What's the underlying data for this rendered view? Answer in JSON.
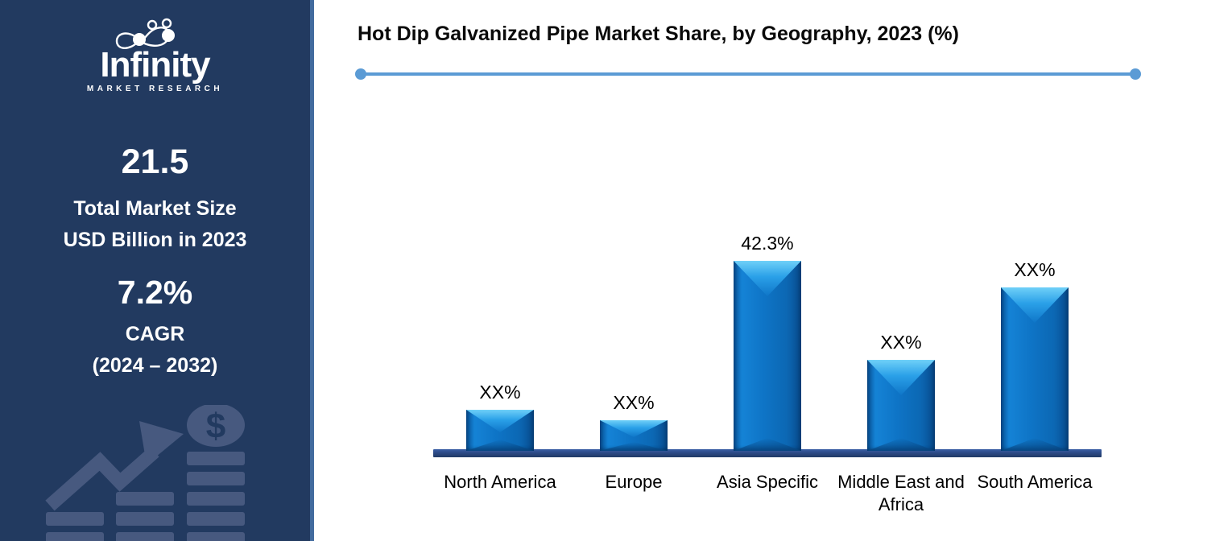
{
  "sidebar": {
    "brand": "Infinity",
    "tagline": "MARKET RESEARCH",
    "market_size": {
      "value": "21.5",
      "line1": "Total Market Size",
      "line2": "USD Billion in 2023"
    },
    "cagr": {
      "value": "7.2%",
      "line1": "CAGR",
      "line2": "(2024 – 2032)"
    }
  },
  "header": {
    "title": "Hot Dip Galvanized Pipe Market Share, by Geography, 2023 (%)"
  },
  "icons": {
    "logo_mark": "infinity-loop-with-figures",
    "sidebar_footer": "growth-arrow-with-dollar-coin-and-bar-stacks",
    "divider_ends": "circle-dot"
  },
  "colors": {
    "sidebar_bg": "#223a60",
    "sidebar_border": "#426b9e",
    "divider_blue": "#5b9bd5",
    "bar_main": "#0d72c4",
    "bar_highlight": "#4fc0f4",
    "bar_edge_dark": "#0a5aa4",
    "axis_navy": "#2c4a86",
    "muted_icon_blue": "#47597f",
    "text": "#0a0a0a"
  },
  "chart_data": {
    "type": "bar",
    "title": "Hot Dip Galvanized Pipe Market Share, by Geography, 2023 (%)",
    "categories": [
      "North America",
      "Europe",
      "Asia Specific",
      "Middle East and Africa",
      "South America"
    ],
    "data_labels": [
      "XX%",
      "XX%",
      "42.3%",
      "XX%",
      "XX%"
    ],
    "values_pct_estimated": [
      9.2,
      6.8,
      42.3,
      20.2,
      36.4
    ],
    "xlabel": "",
    "ylabel": "",
    "ylim": [
      0,
      45
    ],
    "grid": false,
    "legend": false,
    "value_axis_hidden": true
  }
}
